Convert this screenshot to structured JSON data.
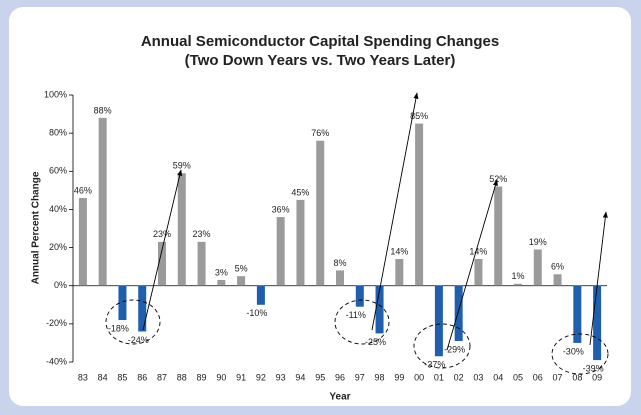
{
  "chart_data": {
    "type": "bar",
    "title": "Annual Semiconductor Capital Spending Changes",
    "subtitle": "(Two Down Years vs. Two Years Later)",
    "x_label": "Year",
    "y_label": "Annual Percent Change",
    "categories": [
      "83",
      "84",
      "85",
      "86",
      "87",
      "88",
      "89",
      "90",
      "91",
      "92",
      "93",
      "94",
      "95",
      "96",
      "97",
      "98",
      "99",
      "00",
      "01",
      "02",
      "03",
      "04",
      "05",
      "06",
      "07",
      "08",
      "09"
    ],
    "values": [
      46,
      88,
      -18,
      -24,
      23,
      59,
      23,
      3,
      5,
      -10,
      36,
      45,
      76,
      8,
      -11,
      -25,
      14,
      85,
      -37,
      -29,
      14,
      52,
      1,
      19,
      6,
      -30,
      -39
    ],
    "value_labels": [
      "46%",
      "88%",
      "-18%",
      "-24%",
      "23%",
      "59%",
      "23%",
      "3%",
      "5%",
      "-10%",
      "36%",
      "45%",
      "76%",
      "8%",
      "-11%",
      "-25%",
      "14%",
      "85%",
      "-37%",
      "-29%",
      "14%",
      "52%",
      "1%",
      "19%",
      "6%",
      "-30%",
      "-39%"
    ],
    "colors": {
      "positive": "#9b9b9b",
      "negative": "#1f5fae"
    },
    "ylim": [
      -40,
      100
    ],
    "yticks": [
      {
        "value": -40,
        "label": "-40%"
      },
      {
        "value": -20,
        "label": "-20%"
      },
      {
        "value": 0,
        "label": "0%"
      },
      {
        "value": 20,
        "label": "20%"
      },
      {
        "value": 40,
        "label": "40%"
      },
      {
        "value": 60,
        "label": "60%"
      },
      {
        "value": 80,
        "label": "80%"
      },
      {
        "value": 100,
        "label": "100%"
      }
    ]
  }
}
